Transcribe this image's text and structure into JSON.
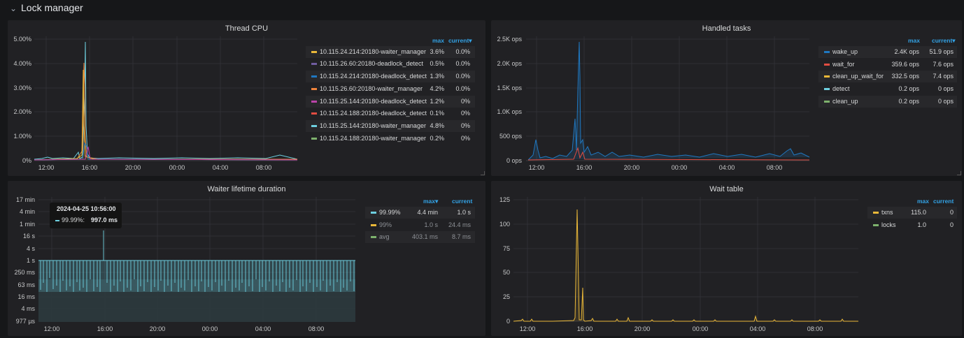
{
  "row": {
    "title": "Lock manager",
    "chevron_icon": "chevron-down-icon"
  },
  "panels": {
    "thread_cpu": {
      "title": "Thread CPU",
      "legend_headers": {
        "max": "max",
        "current": "current▾"
      },
      "legend": [
        {
          "name": "10.115.24.214:20180-waiter_manager",
          "max": "3.6%",
          "current": "0.0%",
          "color": "#eab839"
        },
        {
          "name": "10.115.26.60:20180-deadlock_detect",
          "max": "0.5%",
          "current": "0.0%",
          "color": "#705da0"
        },
        {
          "name": "10.115.24.214:20180-deadlock_detect",
          "max": "1.3%",
          "current": "0.0%",
          "color": "#1f78c1"
        },
        {
          "name": "10.115.26.60:20180-waiter_manager",
          "max": "4.2%",
          "current": "0.0%",
          "color": "#ef843c"
        },
        {
          "name": "10.115.25.144:20180-deadlock_detect",
          "max": "1.2%",
          "current": "0%",
          "color": "#ba43a9"
        },
        {
          "name": "10.115.24.188:20180-deadlock_detect",
          "max": "0.1%",
          "current": "0%",
          "color": "#e24d42"
        },
        {
          "name": "10.115.25.144:20180-waiter_manager",
          "max": "4.8%",
          "current": "0%",
          "color": "#6ed0e0"
        },
        {
          "name": "10.115.24.188:20180-waiter_manager",
          "max": "0.2%",
          "current": "0%",
          "color": "#7eb26d"
        }
      ]
    },
    "handled_tasks": {
      "title": "Handled tasks",
      "legend_headers": {
        "max": "max",
        "current": "current▾"
      },
      "legend": [
        {
          "name": "wake_up",
          "max": "2.4K ops",
          "current": "51.9 ops",
          "color": "#1f78c1"
        },
        {
          "name": "wait_for",
          "max": "359.6 ops",
          "current": "7.6 ops",
          "color": "#e24d42"
        },
        {
          "name": "clean_up_wait_for",
          "max": "332.5 ops",
          "current": "7.4 ops",
          "color": "#eab839"
        },
        {
          "name": "detect",
          "max": "0.2 ops",
          "current": "0 ops",
          "color": "#6ed0e0"
        },
        {
          "name": "clean_up",
          "max": "0.2 ops",
          "current": "0 ops",
          "color": "#7eb26d"
        }
      ]
    },
    "waiter_lifetime": {
      "title": "Waiter lifetime duration",
      "legend_headers": {
        "max": "max▾",
        "current": "current"
      },
      "legend": [
        {
          "name": "99.99%",
          "max": "4.4 min",
          "current": "1.0 s",
          "color": "#6ed0e0"
        },
        {
          "name": "99%",
          "max": "1.0 s",
          "current": "24.4 ms",
          "color": "#eab839"
        },
        {
          "name": "avg",
          "max": "403.1 ms",
          "current": "8.7 ms",
          "color": "#7eb26d"
        }
      ],
      "tooltip": {
        "time": "2024-04-25 10:56:00",
        "series": "99.99%:",
        "value": "997.0 ms"
      }
    },
    "wait_table": {
      "title": "Wait table",
      "legend_headers": {
        "max": "max",
        "current": "current"
      },
      "legend": [
        {
          "name": "txns",
          "max": "115.0",
          "current": "0",
          "color": "#eab839"
        },
        {
          "name": "locks",
          "max": "1.0",
          "current": "0",
          "color": "#7eb26d"
        }
      ]
    }
  },
  "chart_data": [
    {
      "type": "line",
      "title": "Thread CPU",
      "x_ticks": [
        "12:00",
        "16:00",
        "20:00",
        "00:00",
        "04:00",
        "08:00"
      ],
      "y_ticks": [
        "5.00%",
        "4.00%",
        "3.00%",
        "2.00%",
        "1.00%",
        "0%"
      ],
      "ylim": [
        0,
        5
      ],
      "series": [
        {
          "name": "10.115.25.144:20180-waiter_manager",
          "color": "#6ed0e0",
          "peak": 4.8,
          "peak_time": "15:45"
        },
        {
          "name": "10.115.26.60:20180-waiter_manager",
          "color": "#ef843c",
          "peak": 4.2,
          "peak_time": "15:35"
        },
        {
          "name": "10.115.24.214:20180-waiter_manager",
          "color": "#eab839",
          "peak": 3.6,
          "peak_time": "15:35"
        },
        {
          "name": "10.115.24.214:20180-deadlock_detect",
          "color": "#1f78c1",
          "peak": 1.3,
          "peak_time": "15:40"
        },
        {
          "name": "10.115.25.144:20180-deadlock_detect",
          "color": "#ba43a9",
          "peak": 1.2,
          "peak_time": "15:50"
        }
      ]
    },
    {
      "type": "line",
      "title": "Handled tasks",
      "x_ticks": [
        "12:00",
        "16:00",
        "20:00",
        "00:00",
        "04:00",
        "08:00"
      ],
      "y_ticks": [
        "2.5K ops",
        "2.0K ops",
        "1.5K ops",
        "1.0K ops",
        "500 ops",
        "0 ops"
      ],
      "ylim": [
        0,
        2500
      ],
      "series": [
        {
          "name": "wake_up",
          "color": "#1f78c1",
          "peak": 2400,
          "peak_time": "15:50"
        },
        {
          "name": "wait_for",
          "color": "#e24d42",
          "peak": 359.6,
          "peak_time": "15:55"
        }
      ]
    },
    {
      "type": "area",
      "title": "Waiter lifetime duration",
      "x_ticks": [
        "12:00",
        "16:00",
        "20:00",
        "00:00",
        "04:00",
        "08:00"
      ],
      "y_ticks": [
        "17 min",
        "4 min",
        "1 min",
        "16 s",
        "4 s",
        "1 s",
        "250 ms",
        "63 ms",
        "16 ms",
        "4 ms",
        "977 µs"
      ],
      "y_scale": "log",
      "series": [
        {
          "name": "99.99%",
          "color": "#6ed0e0",
          "typical": "1 s",
          "peak": "4.4 min"
        }
      ]
    },
    {
      "type": "line",
      "title": "Wait table",
      "x_ticks": [
        "12:00",
        "16:00",
        "20:00",
        "00:00",
        "04:00",
        "08:00"
      ],
      "y_ticks": [
        "125",
        "100",
        "75",
        "50",
        "25",
        "0"
      ],
      "ylim": [
        0,
        125
      ],
      "series": [
        {
          "name": "txns",
          "color": "#eab839",
          "peak": 115,
          "peak_time": "15:40"
        }
      ]
    }
  ]
}
